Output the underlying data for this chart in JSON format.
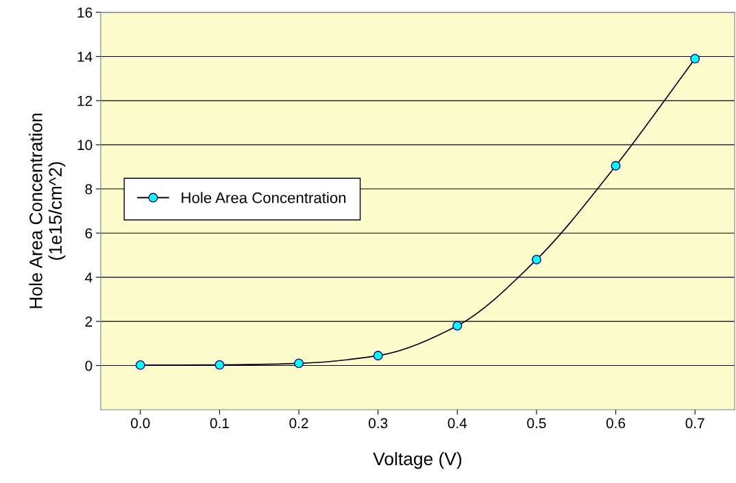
{
  "chart_data": {
    "type": "line",
    "xlabel": "Voltage (V)",
    "ylabel": "Hole Area Concentration\n(1e15/cm^2)",
    "x": [
      0.0,
      0.1,
      0.2,
      0.3,
      0.4,
      0.5,
      0.6,
      0.7
    ],
    "series": [
      {
        "name": "Hole Area Concentration",
        "color": "#00ffff",
        "values": [
          0.02,
          0.03,
          0.1,
          0.45,
          1.8,
          4.8,
          9.05,
          13.9
        ]
      }
    ],
    "xlim": [
      -0.05,
      0.75
    ],
    "xticks": [
      {
        "value": 0.0,
        "label": "0.0"
      },
      {
        "value": 0.1,
        "label": "0.1"
      },
      {
        "value": 0.2,
        "label": "0.2"
      },
      {
        "value": 0.3,
        "label": "0.3"
      },
      {
        "value": 0.4,
        "label": "0.4"
      },
      {
        "value": 0.5,
        "label": "0.5"
      },
      {
        "value": 0.6,
        "label": "0.6"
      },
      {
        "value": 0.7,
        "label": "0.7"
      }
    ],
    "ylim": [
      -2,
      16
    ],
    "yticks": [
      0,
      2,
      4,
      6,
      8,
      10,
      12,
      14,
      16
    ],
    "grid": "y",
    "legend": "left",
    "marker": "circle",
    "line_style": "solid"
  }
}
